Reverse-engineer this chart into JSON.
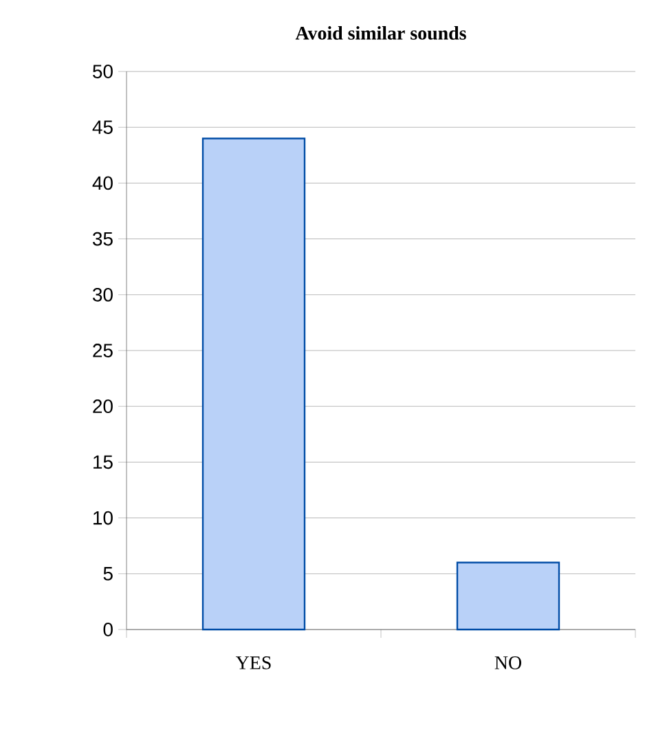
{
  "chart_data": {
    "type": "bar",
    "title": "Avoid similar sounds",
    "categories": [
      "YES",
      "NO"
    ],
    "values": [
      44,
      6
    ],
    "color": "#b9d1f8",
    "ylim": [
      0,
      50
    ],
    "yticks": [
      0,
      5,
      10,
      15,
      20,
      25,
      30,
      35,
      40,
      45,
      50
    ],
    "grid": "y"
  }
}
